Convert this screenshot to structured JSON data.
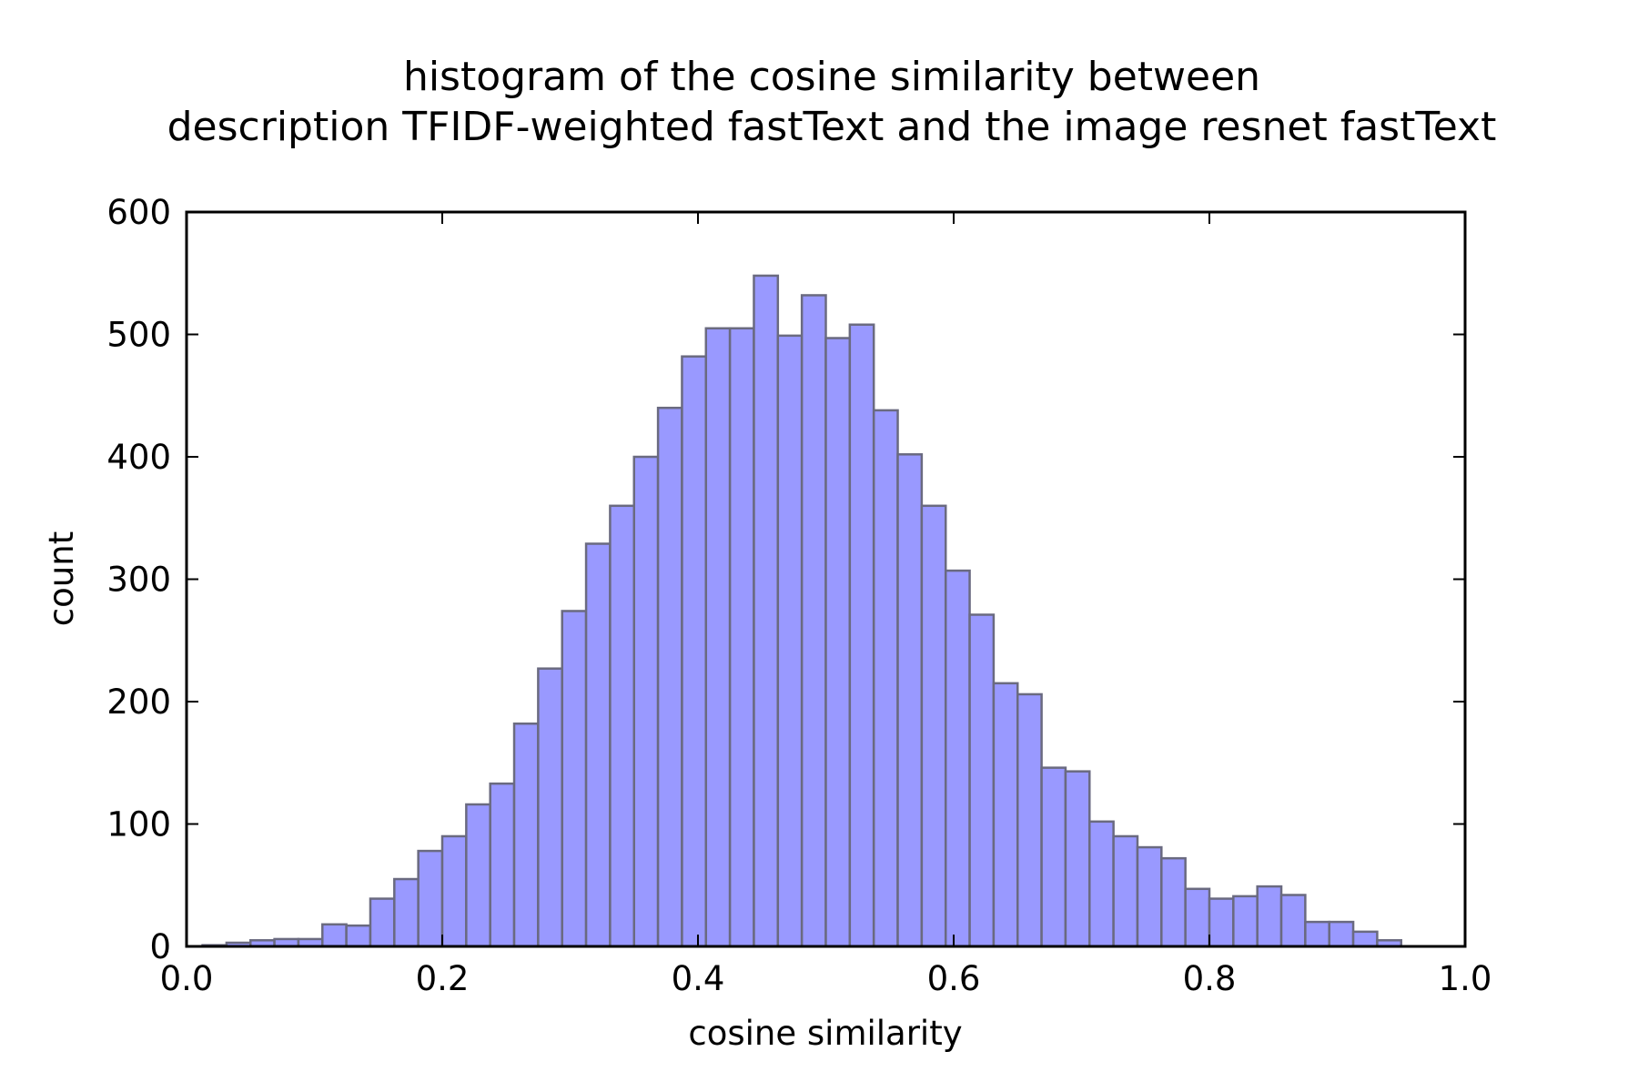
{
  "chart_data": {
    "type": "bar",
    "title_lines": [
      "histogram of the cosine similarity between",
      "description TFIDF-weighted fastText and the image resnet fastText"
    ],
    "xlabel": "cosine similarity",
    "ylabel": "count",
    "xlim": [
      0.0,
      1.0
    ],
    "ylim": [
      0,
      600
    ],
    "xticks": [
      "0.0",
      "0.2",
      "0.4",
      "0.6",
      "0.8",
      "1.0"
    ],
    "yticks": [
      "0",
      "100",
      "200",
      "300",
      "400",
      "500",
      "600"
    ],
    "bin_start": 0.0125,
    "bin_width": 0.01875,
    "values": [
      1,
      3,
      5,
      6,
      6,
      18,
      17,
      39,
      55,
      78,
      90,
      116,
      133,
      182,
      227,
      274,
      329,
      360,
      400,
      440,
      482,
      505,
      505,
      548,
      499,
      532,
      497,
      508,
      438,
      402,
      360,
      307,
      271,
      215,
      206,
      146,
      143,
      102,
      90,
      81,
      72,
      47,
      39,
      41,
      49,
      42,
      20,
      20,
      12,
      5
    ],
    "bar_color": "#9999ff",
    "edge_color": "#6a6a80"
  }
}
